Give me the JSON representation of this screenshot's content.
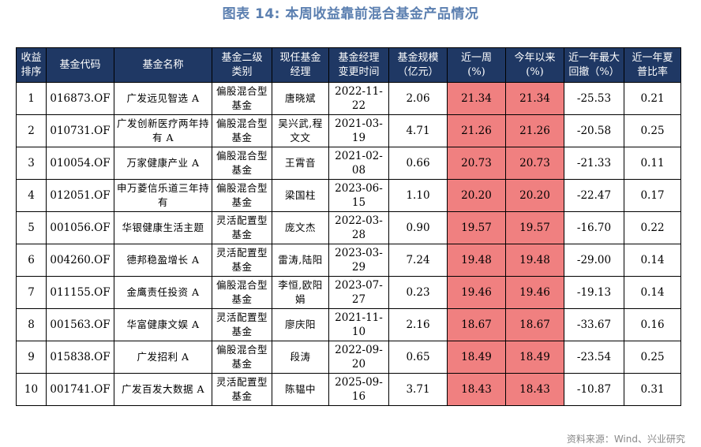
{
  "title": "图表 14: 本周收益靠前混合基金产品情况",
  "headers": [
    "收益\n排序",
    "基金代码",
    "基金名称",
    "基金二级\n类别",
    "现任基金\n经理",
    "基金经理\n变更时间",
    "基金规模\n（亿元）",
    "近一周\n(%)",
    "今年以来\n(%)",
    "近一年最大\n回撤（%）",
    "近一年夏\n普比率"
  ],
  "rows": [
    {
      "rank": "1",
      "code": "016873.OF",
      "name": "广发远见智选 A",
      "category": "偏股混合型基金",
      "manager": "唐晓斌",
      "change_date": "2022-11-22",
      "scale": "2.06",
      "week": "21.34",
      "ytd": "21.34",
      "drawdown": "-25.53",
      "sharpe": "0.21"
    },
    {
      "rank": "2",
      "code": "010731.OF",
      "name": "广发创新医疗两年持有 A",
      "category": "偏股混合型基金",
      "manager": "吴兴武,程文文",
      "change_date": "2021-03-19",
      "scale": "4.71",
      "week": "21.26",
      "ytd": "21.26",
      "drawdown": "-20.58",
      "sharpe": "0.25"
    },
    {
      "rank": "3",
      "code": "010054.OF",
      "name": "万家健康产业 A",
      "category": "偏股混合型基金",
      "manager": "王霄音",
      "change_date": "2021-02-08",
      "scale": "0.66",
      "week": "20.73",
      "ytd": "20.73",
      "drawdown": "-21.33",
      "sharpe": "0.11"
    },
    {
      "rank": "4",
      "code": "012051.OF",
      "name": "申万菱信乐道三年持有",
      "category": "偏股混合型基金",
      "manager": "梁国柱",
      "change_date": "2023-06-15",
      "scale": "1.10",
      "week": "20.20",
      "ytd": "20.20",
      "drawdown": "-22.47",
      "sharpe": "0.17"
    },
    {
      "rank": "5",
      "code": "001056.OF",
      "name": "华银健康生活主题",
      "category": "灵活配置型基金",
      "manager": "庞文杰",
      "change_date": "2022-03-28",
      "scale": "0.90",
      "week": "19.57",
      "ytd": "19.57",
      "drawdown": "-16.70",
      "sharpe": "0.22"
    },
    {
      "rank": "6",
      "code": "004260.OF",
      "name": "德邦稳盈增长 A",
      "category": "灵活配置型基金",
      "manager": "雷涛,陆阳",
      "change_date": "2023-03-29",
      "scale": "7.24",
      "week": "19.48",
      "ytd": "19.48",
      "drawdown": "-29.00",
      "sharpe": "0.14"
    },
    {
      "rank": "7",
      "code": "011155.OF",
      "name": "金鹰责任投资 A",
      "category": "偏股混合型基金",
      "manager": "李恒,欧阳娟",
      "change_date": "2023-07-27",
      "scale": "0.23",
      "week": "19.46",
      "ytd": "19.46",
      "drawdown": "-19.13",
      "sharpe": "0.14"
    },
    {
      "rank": "8",
      "code": "001563.OF",
      "name": "华富健康文娱 A",
      "category": "灵活配置型基金",
      "manager": "廖庆阳",
      "change_date": "2021-11-10",
      "scale": "2.16",
      "week": "18.67",
      "ytd": "18.67",
      "drawdown": "-33.67",
      "sharpe": "0.16"
    },
    {
      "rank": "9",
      "code": "015838.OF",
      "name": "广发招利 A",
      "category": "偏股混合型基金",
      "manager": "段涛",
      "change_date": "2022-09-20",
      "scale": "0.65",
      "week": "18.49",
      "ytd": "18.49",
      "drawdown": "-23.54",
      "sharpe": "0.25"
    },
    {
      "rank": "10",
      "code": "001741.OF",
      "name": "广发百发大数据 A",
      "category": "灵活配置型基金",
      "manager": "陈韫中",
      "change_date": "2025-09-16",
      "scale": "3.71",
      "week": "18.43",
      "ytd": "18.43",
      "drawdown": "-10.87",
      "sharpe": "0.31"
    }
  ],
  "highlight_color": "#f08080",
  "header_color": "#1f3864",
  "source": "资料来源：Wind、兴业研究"
}
